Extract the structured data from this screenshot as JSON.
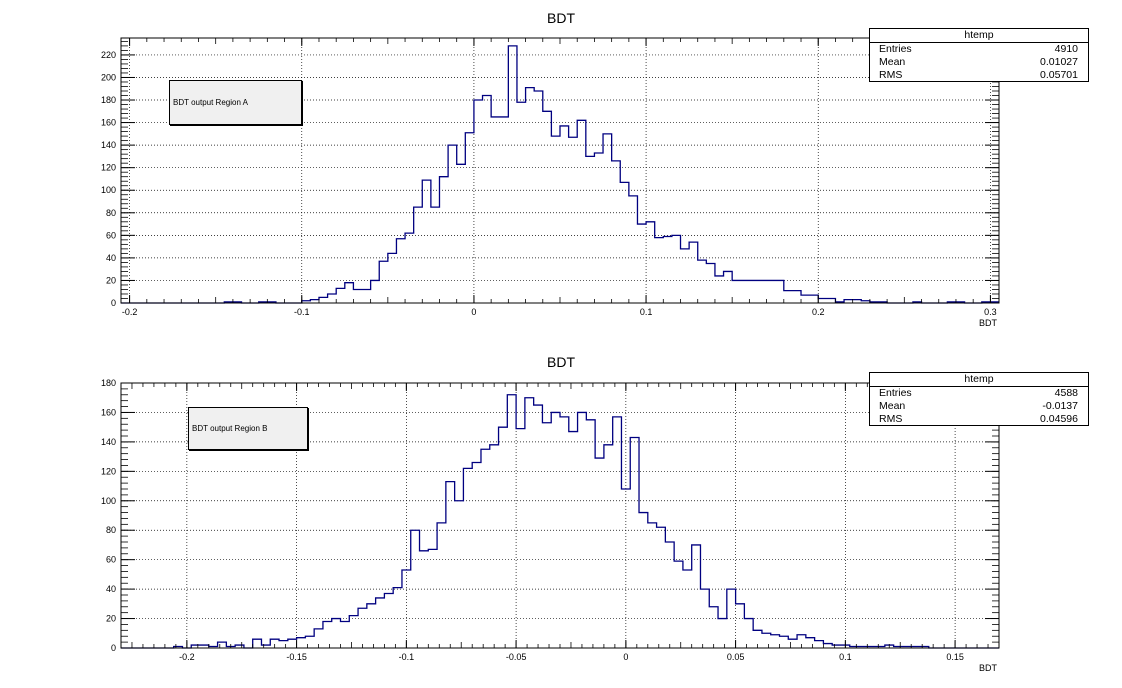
{
  "colors": {
    "histogram": "#000080",
    "frame": "#000000",
    "grid": "#000000",
    "label_box_fill": "#f0f0f0"
  },
  "chart_data": [
    {
      "type": "histogram",
      "title": "BDT",
      "xlabel": "BDT",
      "ylabel": "",
      "xlim": [
        -0.205,
        0.305
      ],
      "ylim": [
        0,
        235
      ],
      "grid": true,
      "x_ticks": [
        -0.2,
        -0.1,
        0,
        0.1,
        0.2,
        0.3
      ],
      "x_tick_labels": [
        "-0.2",
        "-0.1",
        "0",
        "0.1",
        "0.2",
        "0.3"
      ],
      "y_ticks": [
        0,
        20,
        40,
        60,
        80,
        100,
        120,
        140,
        160,
        180,
        200,
        220
      ],
      "bin_start": -0.205,
      "bin_width": 0.005,
      "counts": [
        0,
        0,
        0,
        0,
        0,
        0,
        0,
        0,
        0,
        0,
        0,
        0,
        1,
        1,
        0,
        0,
        1,
        1,
        0,
        0,
        0,
        2,
        3,
        5,
        8,
        13,
        18,
        12,
        12,
        20,
        37,
        44,
        57,
        62,
        85,
        109,
        85,
        112,
        140,
        123,
        151,
        180,
        184,
        165,
        165,
        228,
        178,
        191,
        188,
        170,
        148,
        157,
        147,
        162,
        130,
        133,
        150,
        126,
        107,
        95,
        70,
        72,
        58,
        59,
        60,
        48,
        54,
        38,
        35,
        24,
        28,
        20,
        20,
        20,
        20,
        20,
        20,
        11,
        11,
        7,
        7,
        4,
        4,
        1,
        3,
        3,
        2,
        1,
        1,
        0,
        0,
        0,
        1,
        0,
        0,
        0,
        1,
        1,
        0,
        0,
        1,
        1
      ],
      "label_text": "BDT output Region A",
      "legend_position": "left",
      "stats": {
        "name": "htemp",
        "entries_label": "Entries",
        "entries": "4910",
        "mean_label": "Mean",
        "mean": "0.01027",
        "rms_label": "RMS",
        "rms": "0.05701"
      }
    },
    {
      "type": "histogram",
      "title": "BDT",
      "xlabel": "BDT",
      "ylabel": "",
      "xlim": [
        -0.23,
        0.17
      ],
      "ylim": [
        0,
        180
      ],
      "grid": true,
      "x_ticks": [
        -0.2,
        -0.15,
        -0.1,
        -0.05,
        0,
        0.05,
        0.1,
        0.15
      ],
      "x_tick_labels": [
        "-0.2",
        "-0.15",
        "-0.1",
        "-0.05",
        "0",
        "0.05",
        "0.1",
        "0.15"
      ],
      "y_ticks": [
        0,
        20,
        40,
        60,
        80,
        100,
        120,
        140,
        160,
        180
      ],
      "bin_start": -0.23,
      "bin_width": 0.004,
      "counts": [
        0,
        0,
        0,
        0,
        0,
        0,
        1,
        0,
        2,
        2,
        1,
        4,
        1,
        2,
        0,
        6,
        2,
        6,
        5,
        6,
        7,
        8,
        13,
        18,
        20,
        18,
        22,
        27,
        30,
        34,
        37,
        41,
        53,
        80,
        66,
        67,
        85,
        113,
        100,
        122,
        126,
        135,
        138,
        150,
        172,
        149,
        170,
        165,
        153,
        160,
        157,
        147,
        160,
        155,
        129,
        138,
        157,
        108,
        143,
        92,
        85,
        82,
        72,
        59,
        53,
        70,
        40,
        28,
        20,
        40,
        30,
        20,
        12,
        10,
        9,
        8,
        6,
        9,
        7,
        5,
        3,
        2,
        2,
        1,
        1,
        1,
        1,
        2,
        1,
        1,
        1,
        1,
        0,
        0,
        0,
        0,
        0,
        0,
        0,
        0
      ],
      "label_text": "BDT output Region B",
      "legend_position": "left",
      "stats": {
        "name": "htemp",
        "entries_label": "Entries",
        "entries": "4588",
        "mean_label": "Mean",
        "mean": "-0.0137",
        "rms_label": "RMS",
        "rms": "0.04596"
      }
    }
  ]
}
